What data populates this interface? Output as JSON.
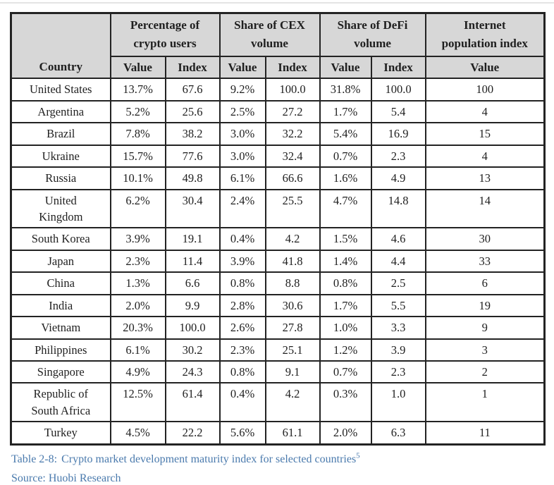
{
  "colors": {
    "header_bg": "#d7d7d7",
    "border": "#232323",
    "caption_text": "#4a7aad",
    "cell_text": "#1f1f1f"
  },
  "table": {
    "country_header": "Country",
    "groups": [
      {
        "label": "Percentage of\ncrypto users"
      },
      {
        "label": "Share of CEX\nvolume"
      },
      {
        "label": "Share of DeFi\nvolume"
      },
      {
        "label": "Internet\npopulation index"
      }
    ],
    "sub_headers": [
      "Value",
      "Index",
      "Value",
      "Index",
      "Value",
      "Index",
      "Value"
    ],
    "rows": [
      {
        "country": "United States",
        "values": [
          "13.7%",
          "67.6",
          "9.2%",
          "100.0",
          "31.8%",
          "100.0",
          "100"
        ]
      },
      {
        "country": "Argentina",
        "values": [
          "5.2%",
          "25.6",
          "2.5%",
          "27.2",
          "1.7%",
          "5.4",
          "4"
        ]
      },
      {
        "country": "Brazil",
        "values": [
          "7.8%",
          "38.2",
          "3.0%",
          "32.2",
          "5.4%",
          "16.9",
          "15"
        ]
      },
      {
        "country": "Ukraine",
        "values": [
          "15.7%",
          "77.6",
          "3.0%",
          "32.4",
          "0.7%",
          "2.3",
          "4"
        ]
      },
      {
        "country": "Russia",
        "values": [
          "10.1%",
          "49.8",
          "6.1%",
          "66.6",
          "1.6%",
          "4.9",
          "13"
        ]
      },
      {
        "country": "United\nKingdom",
        "values": [
          "6.2%",
          "30.4",
          "2.4%",
          "25.5",
          "4.7%",
          "14.8",
          "14"
        ]
      },
      {
        "country": "South Korea",
        "values": [
          "3.9%",
          "19.1",
          "0.4%",
          "4.2",
          "1.5%",
          "4.6",
          "30"
        ]
      },
      {
        "country": "Japan",
        "values": [
          "2.3%",
          "11.4",
          "3.9%",
          "41.8",
          "1.4%",
          "4.4",
          "33"
        ]
      },
      {
        "country": "China",
        "values": [
          "1.3%",
          "6.6",
          "0.8%",
          "8.8",
          "0.8%",
          "2.5",
          "6"
        ]
      },
      {
        "country": "India",
        "values": [
          "2.0%",
          "9.9",
          "2.8%",
          "30.6",
          "1.7%",
          "5.5",
          "19"
        ]
      },
      {
        "country": "Vietnam",
        "values": [
          "20.3%",
          "100.0",
          "2.6%",
          "27.8",
          "1.0%",
          "3.3",
          "9"
        ]
      },
      {
        "country": "Philippines",
        "values": [
          "6.1%",
          "30.2",
          "2.3%",
          "25.1",
          "1.2%",
          "3.9",
          "3"
        ]
      },
      {
        "country": "Singapore",
        "values": [
          "4.9%",
          "24.3",
          "0.8%",
          "9.1",
          "0.7%",
          "2.3",
          "2"
        ]
      },
      {
        "country": "Republic of\nSouth Africa",
        "values": [
          "12.5%",
          "61.4",
          "0.4%",
          "4.2",
          "0.3%",
          "1.0",
          "1"
        ]
      },
      {
        "country": "Turkey",
        "values": [
          "4.5%",
          "22.2",
          "5.6%",
          "61.1",
          "2.0%",
          "6.3",
          "11"
        ]
      }
    ]
  },
  "caption": {
    "label": "Table 2-8:",
    "text": "Crypto market development maturity index for selected countries",
    "footnote_marker": "5"
  },
  "source_line": "Source: Huobi Research"
}
